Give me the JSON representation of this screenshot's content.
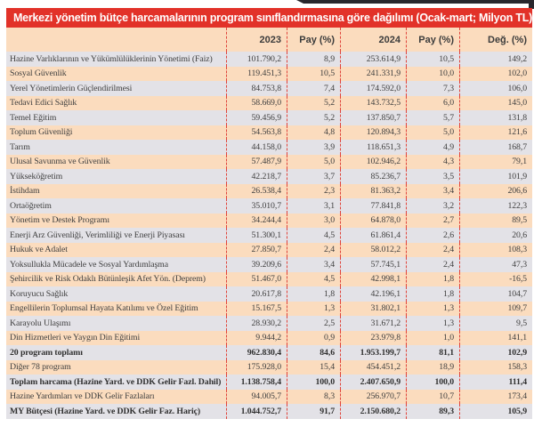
{
  "title": "Merkezi yönetim bütçe harcamalarının program sınıflandırmasına göre dağılımı (Ocak-mart; Milyon TL)",
  "colors": {
    "title_bar_red": "#e23229",
    "row_gray": "#e3e2e7",
    "row_peach": "#fbdcbe",
    "dashed_separator_red": "#e0443b",
    "text_dark": "#3f3f3f",
    "title_text": "#ffffff"
  },
  "chart_data": {
    "type": "table",
    "title": "Merkezi yönetim bütçe harcamalarının program sınıflandırmasına göre dağılımı (Ocak-mart; Milyon TL)",
    "columns": [
      "",
      "2023",
      "Pay (%)",
      "2024",
      "Pay (%)",
      "Değ. (%)"
    ],
    "rows": [
      {
        "label": "Hazine Varlıklarının ve Yükümlülüklerinin Yönetimi (Faiz)",
        "v2023": "101.790,2",
        "pay_2023": "8,9",
        "v2024": "253.614,9",
        "pay_2024": "10,5",
        "change": "149,2",
        "bold": false
      },
      {
        "label": "Sosyal Güvenlik",
        "v2023": "119.451,3",
        "pay_2023": "10,5",
        "v2024": "241.331,9",
        "pay_2024": "10,0",
        "change": "102,0",
        "bold": false
      },
      {
        "label": "Yerel Yönetimlerin Güçlendirilmesi",
        "v2023": "84.753,8",
        "pay_2023": "7,4",
        "v2024": "174.592,0",
        "pay_2024": "7,3",
        "change": "106,0",
        "bold": false
      },
      {
        "label": "Tedavi Edici Sağlık",
        "v2023": "58.669,0",
        "pay_2023": "5,2",
        "v2024": "143.732,5",
        "pay_2024": "6,0",
        "change": "145,0",
        "bold": false
      },
      {
        "label": "Temel Eğitim",
        "v2023": "59.456,9",
        "pay_2023": "5,2",
        "v2024": "137.850,7",
        "pay_2024": "5,7",
        "change": "131,8",
        "bold": false
      },
      {
        "label": "Toplum Güvenliği",
        "v2023": "54.563,8",
        "pay_2023": "4,8",
        "v2024": "120.894,3",
        "pay_2024": "5,0",
        "change": "121,6",
        "bold": false
      },
      {
        "label": "Tarım",
        "v2023": "44.158,0",
        "pay_2023": "3,9",
        "v2024": "118.651,3",
        "pay_2024": "4,9",
        "change": "168,7",
        "bold": false
      },
      {
        "label": "Ulusal Savunma ve Güvenlik",
        "v2023": "57.487,9",
        "pay_2023": "5,0",
        "v2024": "102.946,2",
        "pay_2024": "4,3",
        "change": "79,1",
        "bold": false
      },
      {
        "label": "Yükseköğretim",
        "v2023": "42.218,7",
        "pay_2023": "3,7",
        "v2024": "85.236,7",
        "pay_2024": "3,5",
        "change": "101,9",
        "bold": false
      },
      {
        "label": "İstihdam",
        "v2023": "26.538,4",
        "pay_2023": "2,3",
        "v2024": "81.363,2",
        "pay_2024": "3,4",
        "change": "206,6",
        "bold": false
      },
      {
        "label": "Ortaöğretim",
        "v2023": "35.010,7",
        "pay_2023": "3,1",
        "v2024": "77.841,8",
        "pay_2024": "3,2",
        "change": "122,3",
        "bold": false
      },
      {
        "label": "Yönetim ve Destek Programı",
        "v2023": "34.244,4",
        "pay_2023": "3,0",
        "v2024": "64.878,0",
        "pay_2024": "2,7",
        "change": "89,5",
        "bold": false
      },
      {
        "label": "Enerji Arz Güvenliği, Verimliliği ve Enerji Piyasası",
        "v2023": "51.300,1",
        "pay_2023": "4,5",
        "v2024": "61.861,4",
        "pay_2024": "2,6",
        "change": "20,6",
        "bold": false
      },
      {
        "label": "Hukuk ve Adalet",
        "v2023": "27.850,7",
        "pay_2023": "2,4",
        "v2024": "58.012,2",
        "pay_2024": "2,4",
        "change": "108,3",
        "bold": false
      },
      {
        "label": "Yoksullukla Mücadele ve Sosyal Yardımlaşma",
        "v2023": "39.209,6",
        "pay_2023": "3,4",
        "v2024": "57.745,1",
        "pay_2024": "2,4",
        "change": "47,3",
        "bold": false
      },
      {
        "label": "Şehircilik ve Risk Odaklı Bütünleşik Afet Yön. (Deprem)",
        "v2023": "51.467,0",
        "pay_2023": "4,5",
        "v2024": "42.998,1",
        "pay_2024": "1,8",
        "change": "-16,5",
        "bold": false
      },
      {
        "label": "Koruyucu Sağlık",
        "v2023": "20.617,8",
        "pay_2023": "1,8",
        "v2024": "42.196,1",
        "pay_2024": "1,8",
        "change": "104,7",
        "bold": false
      },
      {
        "label": "Engellilerin Toplumsal Hayata Katılımı ve Özel Eğitim",
        "v2023": "15.167,5",
        "pay_2023": "1,3",
        "v2024": "31.802,1",
        "pay_2024": "1,3",
        "change": "109,7",
        "bold": false
      },
      {
        "label": "Karayolu Ulaşımı",
        "v2023": "28.930,2",
        "pay_2023": "2,5",
        "v2024": "31.671,2",
        "pay_2024": "1,3",
        "change": "9,5",
        "bold": false
      },
      {
        "label": "Din Hizmetleri ve Yaygın Din Eğitimi",
        "v2023": "9.944,2",
        "pay_2023": "0,9",
        "v2024": "23.979,8",
        "pay_2024": "1,0",
        "change": "141,1",
        "bold": false
      },
      {
        "label": "20 program toplamı",
        "v2023": "962.830,4",
        "pay_2023": "84,6",
        "v2024": "1.953.199,7",
        "pay_2024": "81,1",
        "change": "102,9",
        "bold": true
      },
      {
        "label": "Diğer 78 program",
        "v2023": "175.928,0",
        "pay_2023": "15,4",
        "v2024": "454.451,2",
        "pay_2024": "18,9",
        "change": "158,3",
        "bold": false
      },
      {
        "label": "Toplam harcama (Hazine Yard. ve DDK Gelir Fazl. Dahil)",
        "v2023": "1.138.758,4",
        "pay_2023": "100,0",
        "v2024": "2.407.650,9",
        "pay_2024": "100,0",
        "change": "111,4",
        "bold": true
      },
      {
        "label": "Hazine Yardımları ve DDK Gelir Fazlaları",
        "v2023": "94.005,7",
        "pay_2023": "8,3",
        "v2024": "256.970,7",
        "pay_2024": "10,7",
        "change": "173,4",
        "bold": false
      },
      {
        "label": "MY Bütçesi (Hazine Yard. ve DDK Gelir Faz. Hariç)",
        "v2023": "1.044.752,7",
        "pay_2023": "91,7",
        "v2024": "2.150.680,2",
        "pay_2024": "89,3",
        "change": "105,9",
        "bold": true
      }
    ]
  }
}
